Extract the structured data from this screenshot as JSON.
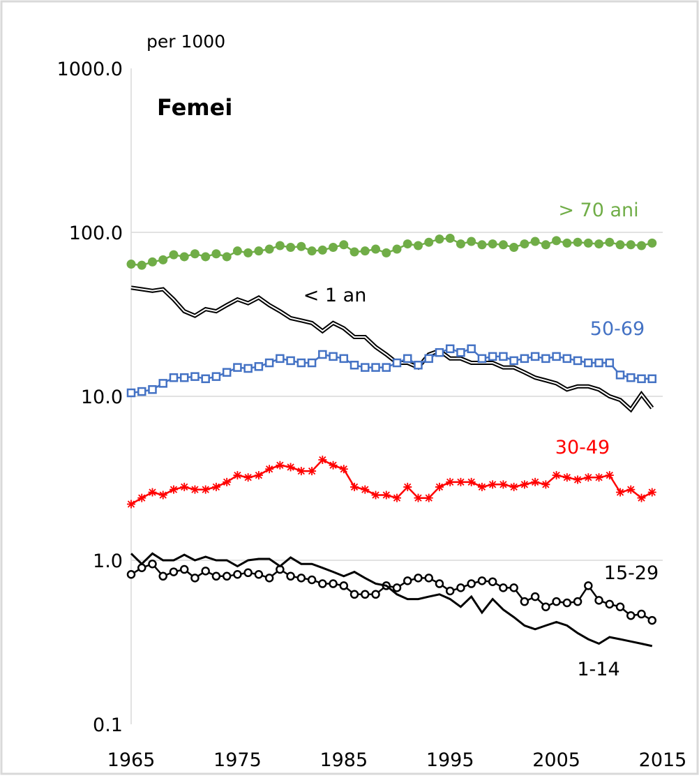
{
  "chart_data": {
    "type": "line",
    "title": "Femei",
    "ylabel": "per 1000",
    "log_y": true,
    "grid": true,
    "x": [
      1965,
      1966,
      1967,
      1968,
      1969,
      1970,
      1971,
      1972,
      1973,
      1974,
      1975,
      1976,
      1977,
      1978,
      1979,
      1980,
      1981,
      1982,
      1983,
      1984,
      1985,
      1986,
      1987,
      1988,
      1989,
      1990,
      1991,
      1992,
      1993,
      1994,
      1995,
      1996,
      1997,
      1998,
      1999,
      2000,
      2001,
      2002,
      2003,
      2004,
      2005,
      2006,
      2007,
      2008,
      2009,
      2010,
      2011,
      2012,
      2013,
      2014
    ],
    "xlim": [
      1965,
      2015
    ],
    "xticks": [
      1965,
      1975,
      1985,
      1995,
      2005,
      2015
    ],
    "ylim": [
      0.1,
      1000
    ],
    "yticks": [
      0.1,
      {
        "value": 1,
        "label": "1.0"
      },
      {
        "value": 10,
        "label": "10.0"
      },
      {
        "value": 100,
        "label": "100.0"
      },
      {
        "value": 1000,
        "label": "1000.0"
      }
    ],
    "series": [
      {
        "name": "> 70 ani",
        "color": "#70ad47",
        "marker": "filled-circle",
        "values": [
          64,
          63,
          66,
          68,
          73,
          71,
          74,
          71,
          74,
          71,
          77,
          75,
          77,
          79,
          83,
          81,
          82,
          77,
          78,
          81,
          84,
          76,
          77,
          79,
          75,
          79,
          85,
          83,
          87,
          91,
          92,
          85,
          88,
          84,
          85,
          84,
          81,
          85,
          88,
          84,
          89,
          86,
          87,
          86,
          85,
          87,
          84,
          84,
          83,
          86
        ]
      },
      {
        "name": "< 1 an",
        "color": "#000000",
        "marker": "none",
        "line": "double",
        "values": [
          46,
          45,
          44,
          45,
          39,
          33,
          31,
          34,
          33,
          36,
          39,
          37,
          40,
          36,
          33,
          30,
          29,
          28,
          25,
          28,
          26,
          23,
          23,
          20,
          18,
          16,
          16,
          15,
          18,
          19,
          17,
          17,
          16,
          16,
          16,
          15,
          15,
          14,
          13,
          12.5,
          12,
          11,
          11.5,
          11.5,
          11,
          10,
          9.5,
          8.3,
          10.3,
          8.5
        ]
      },
      {
        "name": "50-69",
        "color": "#4472c4",
        "marker": "open-square",
        "values": [
          10.5,
          10.7,
          11,
          12,
          13,
          13,
          13.2,
          12.8,
          13.2,
          14,
          15,
          14.8,
          15.2,
          16,
          17,
          16.5,
          16,
          16,
          18,
          17.5,
          17,
          15.5,
          15,
          15,
          15,
          16,
          17,
          15.5,
          17,
          18.5,
          19.5,
          18.5,
          19.5,
          17,
          17.5,
          17.5,
          16.5,
          17,
          17.5,
          17,
          17.5,
          17,
          16.5,
          16,
          16,
          16,
          13.5,
          13,
          12.8,
          12.8
        ]
      },
      {
        "name": "30-49",
        "color": "#ff0000",
        "marker": "star",
        "values": [
          2.2,
          2.4,
          2.6,
          2.5,
          2.7,
          2.8,
          2.7,
          2.7,
          2.8,
          3.0,
          3.3,
          3.2,
          3.3,
          3.6,
          3.8,
          3.7,
          3.5,
          3.5,
          4.1,
          3.8,
          3.6,
          2.8,
          2.7,
          2.5,
          2.5,
          2.4,
          2.8,
          2.4,
          2.4,
          2.8,
          3.0,
          3.0,
          3.0,
          2.8,
          2.9,
          2.9,
          2.8,
          2.9,
          3.0,
          2.9,
          3.3,
          3.2,
          3.1,
          3.2,
          3.2,
          3.3,
          2.6,
          2.7,
          2.4,
          2.6
        ]
      },
      {
        "name": "15-29",
        "color": "#000000",
        "marker": "open-circle",
        "values": [
          0.82,
          0.9,
          0.95,
          0.8,
          0.85,
          0.88,
          0.78,
          0.86,
          0.8,
          0.8,
          0.82,
          0.84,
          0.82,
          0.78,
          0.88,
          0.8,
          0.78,
          0.76,
          0.72,
          0.72,
          0.7,
          0.62,
          0.62,
          0.62,
          0.7,
          0.68,
          0.75,
          0.78,
          0.78,
          0.72,
          0.65,
          0.68,
          0.72,
          0.75,
          0.74,
          0.68,
          0.68,
          0.56,
          0.6,
          0.52,
          0.56,
          0.55,
          0.56,
          0.7,
          0.57,
          0.54,
          0.52,
          0.46,
          0.47,
          0.43
        ]
      },
      {
        "name": "1-14",
        "color": "#000000",
        "marker": "none",
        "values": [
          1.1,
          0.95,
          1.1,
          1.0,
          1.0,
          1.08,
          1.0,
          1.05,
          1.0,
          1.0,
          0.92,
          1.0,
          1.02,
          1.02,
          0.92,
          1.04,
          0.95,
          0.95,
          0.9,
          0.85,
          0.8,
          0.85,
          0.78,
          0.72,
          0.7,
          0.62,
          0.58,
          0.58,
          0.6,
          0.62,
          0.58,
          0.52,
          0.6,
          0.48,
          0.58,
          0.5,
          0.45,
          0.4,
          0.38,
          0.4,
          0.42,
          0.4,
          0.36,
          0.33,
          0.31,
          0.34,
          0.33,
          0.32,
          0.31,
          0.3
        ]
      }
    ]
  }
}
